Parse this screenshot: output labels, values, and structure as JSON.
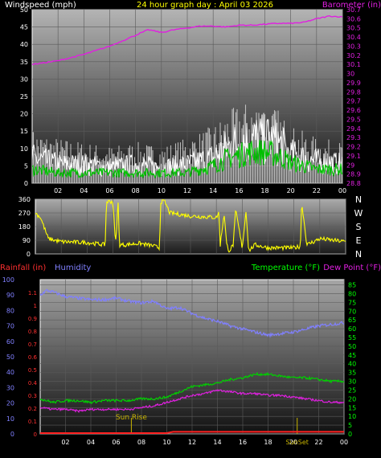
{
  "header": {
    "windspeed_label": "Windspeed (mph)",
    "graph_title": "24 hour graph day : April 03 2026",
    "barometer_label": "Barometer (in)"
  },
  "labels": {
    "rainfall": "Rainfall (in)",
    "humidity": "Humidity",
    "temperature": "Temperature (°F)",
    "dewpoint": "Dew Point (°F)",
    "sunrise": "Sun Rise",
    "sunset": "SunSet"
  },
  "compass": [
    "N",
    "W",
    "S",
    "E",
    "N"
  ],
  "colors": {
    "windspeed": "#ffffff",
    "windavg": "#00c000",
    "gust": "#d0d0d0",
    "barometer": "#e020e0",
    "direction": "#ffff00",
    "humidity": "#8080ff",
    "temperature": "#00d000",
    "dewpoint": "#e020e0",
    "rain": "#ff2020",
    "sun": "#c8b400",
    "title": "#ffff00",
    "rain_axis": "#ff3030",
    "humidity_axis": "#8080ff",
    "temp_axis": "#00ff00"
  },
  "chart_data": [
    {
      "type": "line",
      "title": "24 hour graph day : April 03 2026",
      "x_ticks": [
        "02",
        "04",
        "06",
        "08",
        "10",
        "12",
        "14",
        "16",
        "18",
        "20",
        "22",
        "00"
      ],
      "x_range_hours": [
        0,
        24
      ],
      "y_left": {
        "label": "Windspeed (mph)",
        "ticks": [
          0,
          5,
          10,
          15,
          20,
          25,
          30,
          35,
          40,
          45,
          50
        ],
        "range": [
          0,
          50
        ]
      },
      "y_right": {
        "label": "Barometer (in)",
        "ticks": [
          28.8,
          28.9,
          29,
          29.1,
          29.2,
          29.3,
          29.4,
          29.5,
          29.6,
          29.7,
          29.8,
          29.9,
          30,
          30.1,
          30.2,
          30.3,
          30.4,
          30.5,
          30.6,
          30.7
        ],
        "range": [
          28.8,
          30.7
        ]
      },
      "series": [
        {
          "name": "Barometer (in)",
          "axis": "right",
          "x": [
            0,
            2,
            4,
            6,
            8,
            9,
            10,
            11,
            12,
            13,
            14,
            15,
            16,
            17,
            18,
            19,
            20,
            21,
            22,
            23,
            24
          ],
          "values": [
            30.1,
            30.14,
            30.21,
            30.3,
            30.42,
            30.48,
            30.45,
            30.48,
            30.5,
            30.52,
            30.52,
            30.51,
            30.53,
            30.53,
            30.54,
            30.55,
            30.55,
            30.56,
            30.6,
            30.63,
            30.62
          ]
        },
        {
          "name": "Windspeed (mph)",
          "axis": "left",
          "x": [
            0,
            2,
            4,
            6,
            8,
            10,
            12,
            14,
            15,
            16,
            17,
            18,
            19,
            20,
            22,
            24
          ],
          "values": [
            8,
            6,
            6,
            5,
            6,
            5,
            6,
            8,
            11,
            13,
            14,
            14,
            13,
            9,
            7,
            6
          ]
        },
        {
          "name": "Average windspeed",
          "axis": "left",
          "x": [
            0,
            2,
            4,
            6,
            8,
            10,
            12,
            14,
            15,
            16,
            17,
            18,
            19,
            20,
            22,
            24
          ],
          "values": [
            4,
            3,
            3,
            3,
            3,
            3,
            3,
            5,
            7,
            8,
            9,
            9,
            8,
            6,
            4,
            4
          ]
        },
        {
          "name": "Gust",
          "axis": "left",
          "x": [
            0,
            2,
            4,
            6,
            8,
            10,
            12,
            14,
            15,
            16,
            17,
            18,
            19,
            20,
            22,
            24
          ],
          "values": [
            13,
            11,
            10,
            9,
            10,
            9,
            11,
            14,
            17,
            19,
            20,
            20,
            18,
            14,
            11,
            10
          ]
        }
      ]
    },
    {
      "type": "line",
      "x_range_hours": [
        0,
        24
      ],
      "y_left": {
        "ticks": [
          0,
          90,
          180,
          270,
          360
        ],
        "range": [
          0,
          360
        ]
      },
      "y_right": {
        "ticks": [
          "N",
          "W",
          "S",
          "E",
          "N"
        ]
      },
      "series": [
        {
          "name": "Wind direction",
          "x": [
            0,
            0.4,
            1,
            2,
            4,
            5.4,
            5.5,
            6,
            6.2,
            6.4,
            6.5,
            7,
            8,
            9,
            9.6,
            9.7,
            10,
            10.4,
            12,
            14,
            14.2,
            14.3,
            14.6,
            14.8,
            15,
            15.3,
            15.5,
            16,
            16.3,
            16.5,
            17,
            18,
            20,
            20.5,
            20.6,
            21,
            22,
            24
          ],
          "values": [
            270,
            240,
            100,
            80,
            75,
            60,
            345,
            345,
            60,
            345,
            60,
            60,
            70,
            55,
            40,
            345,
            345,
            270,
            250,
            240,
            275,
            60,
            270,
            60,
            20,
            60,
            290,
            40,
            290,
            20,
            60,
            40,
            40,
            50,
            345,
            60,
            100,
            80
          ]
        }
      ]
    },
    {
      "type": "line",
      "x_ticks": [
        "02",
        "04",
        "06",
        "08",
        "10",
        "12",
        "14",
        "16",
        "18",
        "20",
        "22",
        "00"
      ],
      "x_range_hours": [
        0,
        24
      ],
      "y_left_rain": {
        "label": "Rainfall (in)",
        "ticks": [
          0,
          0.1,
          0.2,
          0.3,
          0.4,
          0.5,
          0.6,
          0.7,
          0.8,
          0.9,
          1,
          1.1
        ],
        "range": [
          0,
          1.2
        ]
      },
      "y_left_humidity": {
        "label": "Humidity",
        "ticks": [
          0,
          10,
          20,
          30,
          40,
          50,
          60,
          70,
          80,
          90,
          100
        ],
        "range": [
          0,
          100
        ]
      },
      "y_right": {
        "label": "Temperature (°F)",
        "ticks": [
          0,
          5,
          10,
          15,
          20,
          25,
          30,
          35,
          40,
          45,
          50,
          55,
          60,
          65,
          70,
          75,
          80,
          85
        ],
        "range": [
          0,
          85
        ]
      },
      "annotations": [
        {
          "text": "Sun Rise",
          "x": 7.2
        },
        {
          "text": "SunSet",
          "x": 20.3
        }
      ],
      "series": [
        {
          "name": "Humidity",
          "axis": "humidity",
          "x": [
            0,
            0.5,
            1,
            2,
            3,
            4,
            5,
            6,
            7,
            8,
            9,
            10,
            11,
            12,
            13,
            14,
            15,
            16,
            17,
            18,
            19,
            20,
            21,
            22,
            23,
            24
          ],
          "values": [
            90,
            93,
            92,
            89,
            88,
            87,
            87,
            88,
            86,
            85,
            86,
            81,
            82,
            78,
            75,
            73,
            70,
            68,
            66,
            64,
            65,
            66,
            68,
            70,
            71,
            72
          ]
        },
        {
          "name": "Temperature (°F)",
          "axis": "right",
          "x": [
            0,
            1,
            2,
            3,
            4,
            5,
            6,
            7,
            8,
            9,
            10,
            11,
            12,
            13,
            14,
            15,
            16,
            17,
            18,
            19,
            20,
            21,
            22,
            23,
            24
          ],
          "values": [
            20,
            18,
            19,
            19,
            18,
            19,
            19,
            19,
            20,
            20,
            21,
            24,
            27,
            28,
            29,
            31,
            32,
            34,
            34,
            33,
            32,
            32,
            31,
            30,
            30
          ]
        },
        {
          "name": "Dew Point (°F)",
          "axis": "right",
          "x": [
            0,
            1,
            2,
            3,
            4,
            5,
            6,
            7,
            8,
            9,
            10,
            11,
            12,
            13,
            14,
            15,
            16,
            17,
            18,
            19,
            20,
            21,
            22,
            23,
            24
          ],
          "values": [
            15,
            14,
            14,
            13,
            14,
            14,
            14,
            14,
            15,
            16,
            18,
            20,
            22,
            23,
            25,
            24,
            23,
            23,
            22,
            22,
            21,
            20,
            19,
            18,
            18
          ]
        },
        {
          "name": "Rainfall (in)",
          "axis": "rain",
          "x": [
            0,
            10,
            10.5,
            24
          ],
          "values": [
            0,
            0,
            0.01,
            0.01
          ]
        }
      ]
    }
  ]
}
